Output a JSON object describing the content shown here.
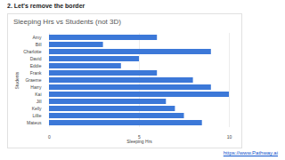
{
  "slide": {
    "heading": "2. Let's remove the border",
    "link": "https://www.Pathway.ai"
  },
  "chart_data": {
    "type": "bar",
    "title": "Sleeping Hrs vs Students (not 3D)",
    "orientation": "horizontal",
    "categories": [
      "Amy",
      "Bill",
      "Charlotte",
      "David",
      "Eddie",
      "Frank",
      "Graeme",
      "Harry",
      "Kai",
      "Jill",
      "Kelly",
      "Lillie",
      "Mateus"
    ],
    "values": [
      6,
      3,
      9,
      5,
      4,
      6,
      8,
      9,
      10,
      6.5,
      7,
      7.5,
      8.5
    ],
    "color": "#3c78d8",
    "x_label": "Sleeping Hrs",
    "y_label": "Students",
    "xlim": [
      0,
      10
    ],
    "xticks": [
      0,
      5,
      10
    ],
    "grid": true
  }
}
